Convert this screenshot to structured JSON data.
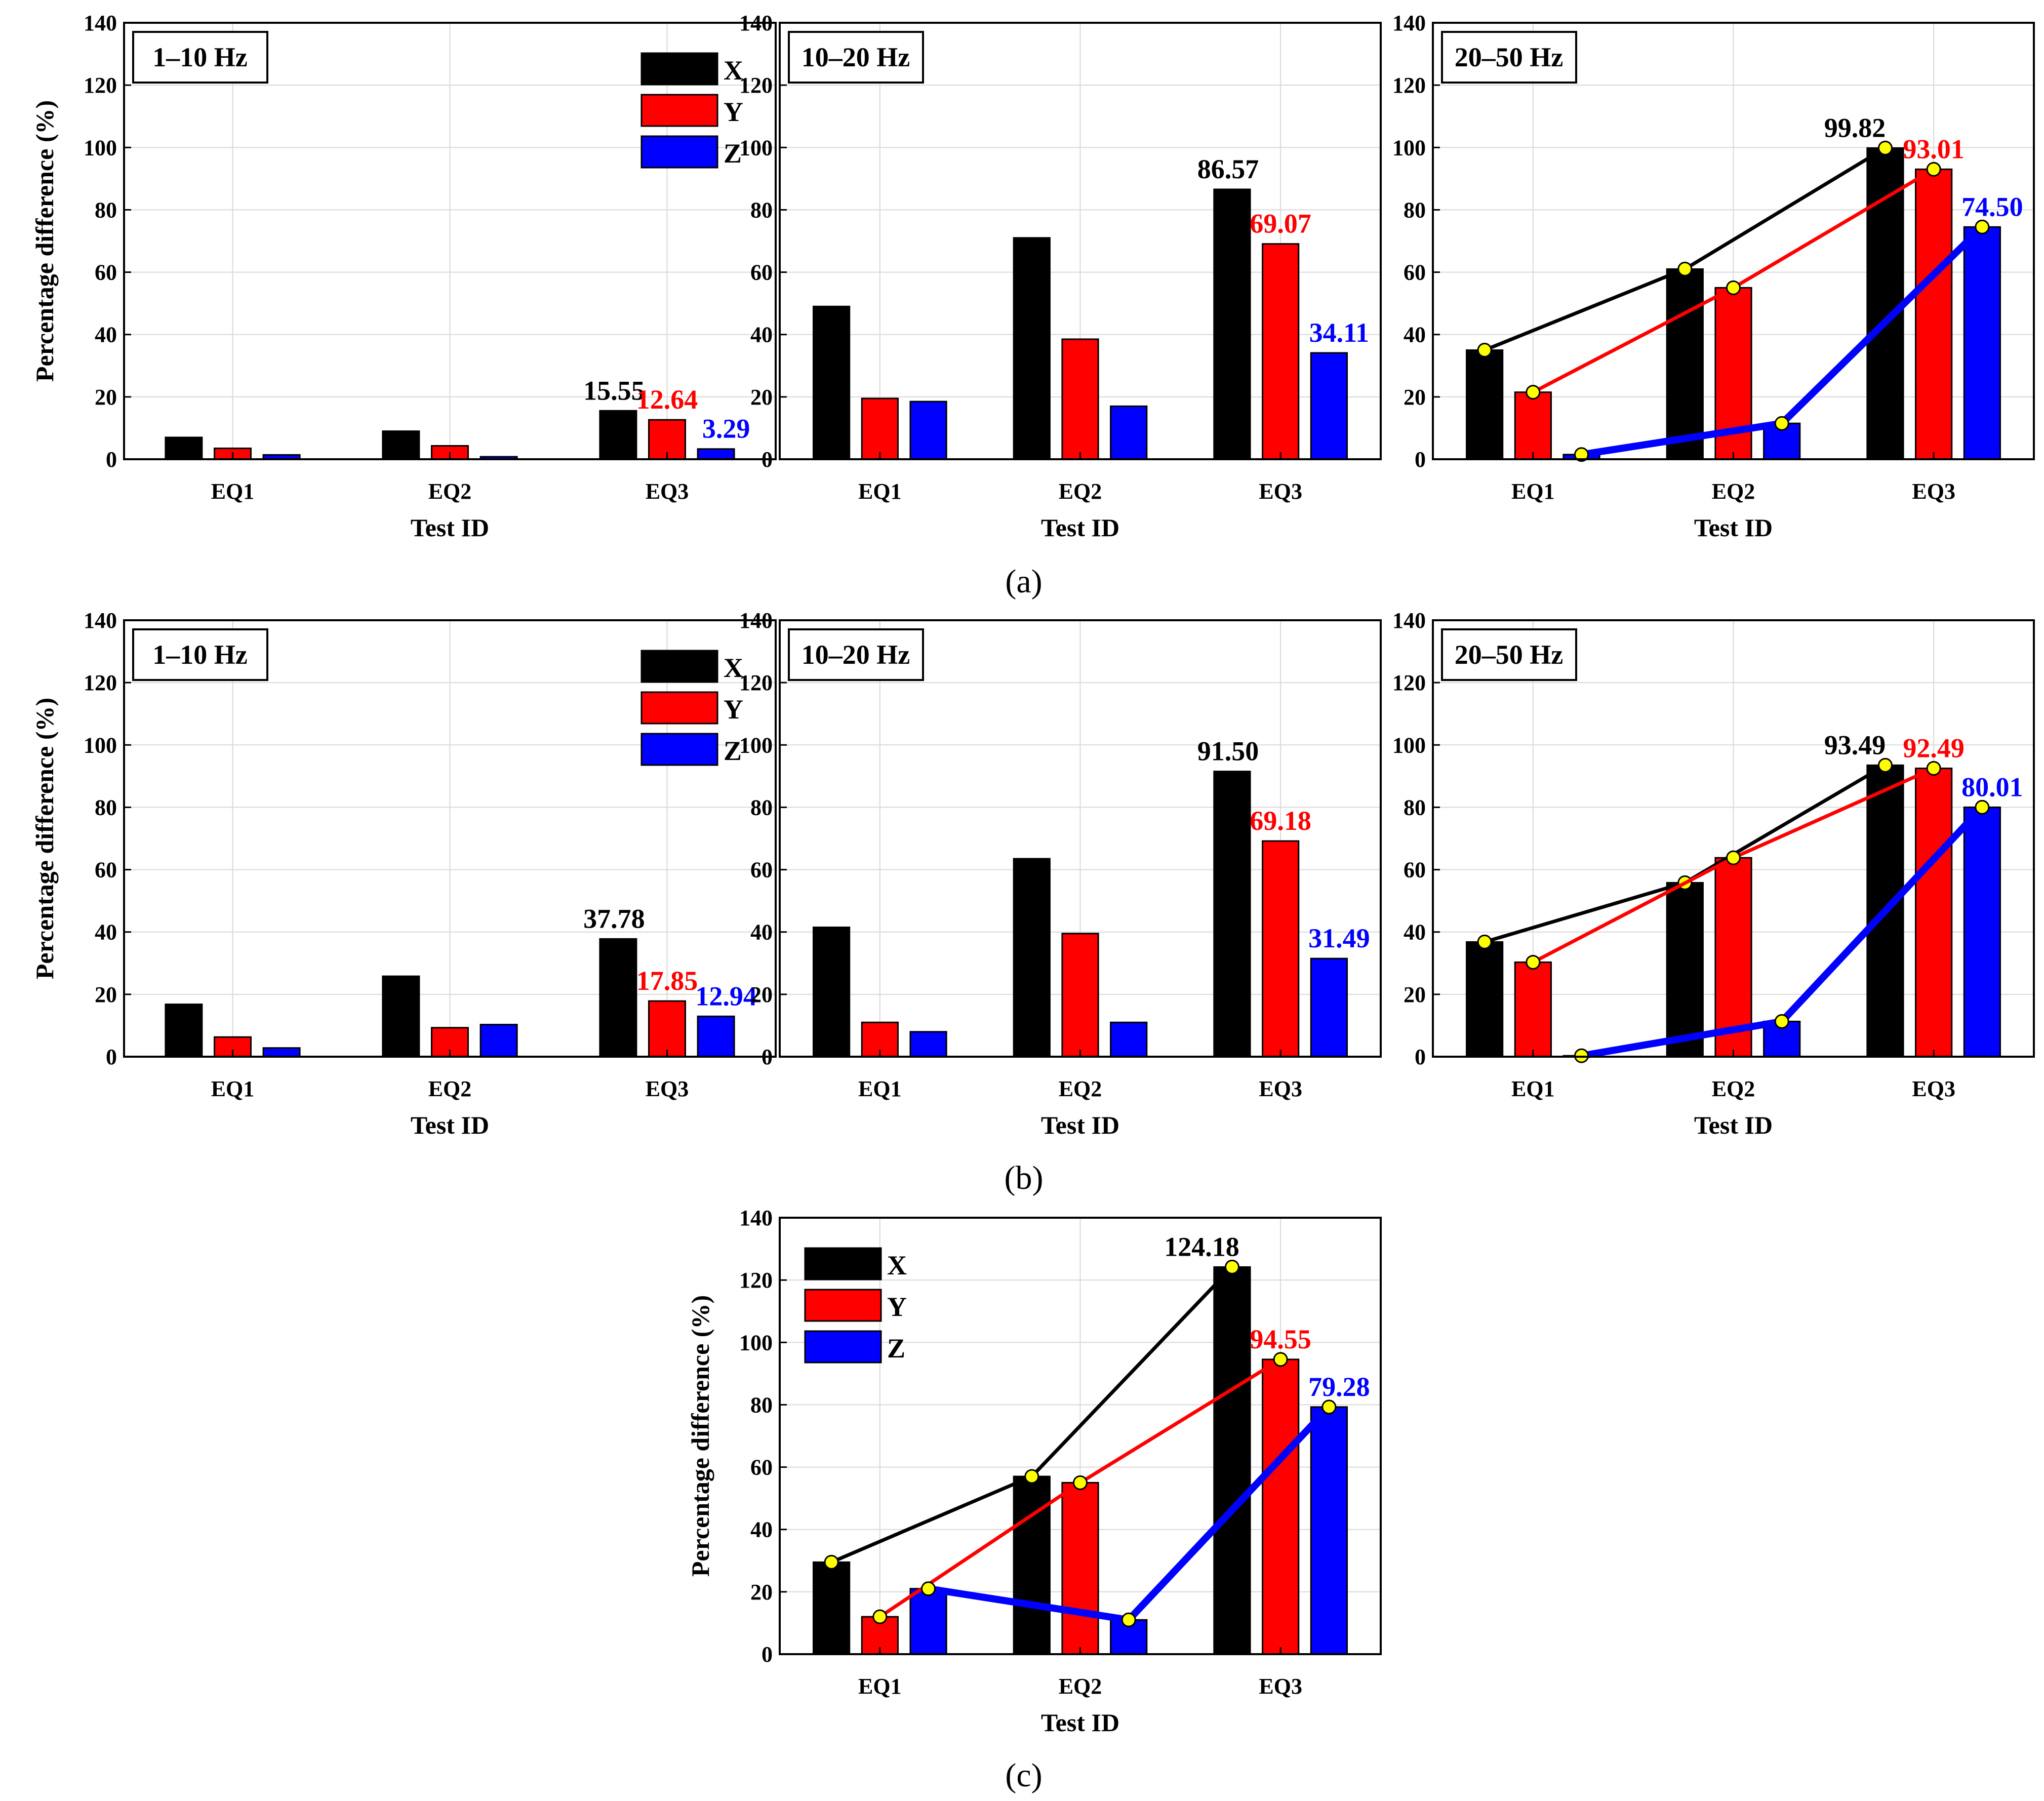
{
  "captions": [
    "(a)",
    "(b)",
    "(c)"
  ],
  "series_names": [
    "X",
    "Y",
    "Z"
  ],
  "colors": {
    "X": "#000000",
    "Y": "#ff0000",
    "Z": "#0000ff",
    "marker": "#ffff00"
  },
  "chart_data": [
    {
      "type": "bar",
      "group": "a",
      "range_label": "1–10 Hz",
      "xlabel": "Test ID",
      "ylabel": "Percentage difference (%)",
      "categories": [
        "EQ1",
        "EQ2",
        "EQ3"
      ],
      "ylim": [
        0,
        140
      ],
      "yticks": [
        "0",
        "20",
        "40",
        "60",
        "80",
        "100",
        "120",
        "140"
      ],
      "series": [
        {
          "name": "X",
          "values": [
            7,
            9,
            15.55
          ]
        },
        {
          "name": "Y",
          "values": [
            3.5,
            4.3,
            12.64
          ]
        },
        {
          "name": "Z",
          "values": [
            1.4,
            0.8,
            3.29
          ]
        }
      ],
      "annotations": [
        "15.55",
        "12.64",
        "3.29"
      ],
      "legend": "top-right",
      "trend_lines": false
    },
    {
      "type": "bar",
      "group": "a",
      "range_label": "10–20 Hz",
      "xlabel": "Test ID",
      "ylabel": "",
      "categories": [
        "EQ1",
        "EQ2",
        "EQ3"
      ],
      "ylim": [
        0,
        140
      ],
      "yticks": [
        "0",
        "20",
        "40",
        "60",
        "80",
        "100",
        "120",
        "140"
      ],
      "series": [
        {
          "name": "X",
          "values": [
            49,
            71,
            86.57
          ]
        },
        {
          "name": "Y",
          "values": [
            19.5,
            38.5,
            69.07
          ]
        },
        {
          "name": "Z",
          "values": [
            18.5,
            17,
            34.11
          ]
        }
      ],
      "annotations": [
        "86.57",
        "69.07",
        "34.11"
      ],
      "legend": "none",
      "trend_lines": false
    },
    {
      "type": "bar",
      "group": "a",
      "range_label": "20–50 Hz",
      "xlabel": "Test ID",
      "ylabel": "",
      "categories": [
        "EQ1",
        "EQ2",
        "EQ3"
      ],
      "ylim": [
        0,
        140
      ],
      "yticks": [
        "0",
        "20",
        "40",
        "60",
        "80",
        "100",
        "120",
        "140"
      ],
      "series": [
        {
          "name": "X",
          "values": [
            35,
            61,
            99.82
          ]
        },
        {
          "name": "Y",
          "values": [
            21.5,
            55,
            93.01
          ]
        },
        {
          "name": "Z",
          "values": [
            1.5,
            11.5,
            74.5
          ]
        }
      ],
      "annotations": [
        "99.82",
        "93.01",
        "74.50"
      ],
      "legend": "none",
      "trend_lines": true
    },
    {
      "type": "bar",
      "group": "b",
      "range_label": "1–10 Hz",
      "xlabel": "Test ID",
      "ylabel": "Percentage difference (%)",
      "categories": [
        "EQ1",
        "EQ2",
        "EQ3"
      ],
      "ylim": [
        0,
        140
      ],
      "yticks": [
        "0",
        "20",
        "40",
        "60",
        "80",
        "100",
        "120",
        "140"
      ],
      "series": [
        {
          "name": "X",
          "values": [
            16.8,
            25.8,
            37.78
          ]
        },
        {
          "name": "Y",
          "values": [
            6.3,
            9.3,
            17.85
          ]
        },
        {
          "name": "Z",
          "values": [
            2.8,
            10.3,
            12.94
          ]
        }
      ],
      "annotations": [
        "37.78",
        "17.85",
        "12.94"
      ],
      "legend": "top-right",
      "trend_lines": false
    },
    {
      "type": "bar",
      "group": "b",
      "range_label": "10–20 Hz",
      "xlabel": "Test ID",
      "ylabel": "",
      "categories": [
        "EQ1",
        "EQ2",
        "EQ3"
      ],
      "ylim": [
        0,
        140
      ],
      "yticks": [
        "0",
        "20",
        "40",
        "60",
        "80",
        "100",
        "120",
        "140"
      ],
      "series": [
        {
          "name": "X",
          "values": [
            41.5,
            63.5,
            91.5
          ]
        },
        {
          "name": "Y",
          "values": [
            11,
            39.5,
            69.18
          ]
        },
        {
          "name": "Z",
          "values": [
            8,
            11,
            31.49
          ]
        }
      ],
      "annotations": [
        "91.50",
        "69.18",
        "31.49"
      ],
      "legend": "none",
      "trend_lines": false
    },
    {
      "type": "bar",
      "group": "b",
      "range_label": "20–50 Hz",
      "xlabel": "Test ID",
      "ylabel": "",
      "categories": [
        "EQ1",
        "EQ2",
        "EQ3"
      ],
      "ylim": [
        0,
        140
      ],
      "yticks": [
        "0",
        "20",
        "40",
        "60",
        "80",
        "100",
        "120",
        "140"
      ],
      "series": [
        {
          "name": "X",
          "values": [
            36.8,
            55.8,
            93.49
          ]
        },
        {
          "name": "Y",
          "values": [
            30.3,
            63.8,
            92.49
          ]
        },
        {
          "name": "Z",
          "values": [
            0.3,
            11.3,
            80.01
          ]
        }
      ],
      "annotations": [
        "93.49",
        "92.49",
        "80.01"
      ],
      "legend": "none",
      "trend_lines": true
    },
    {
      "type": "bar",
      "group": "c",
      "range_label": "",
      "xlabel": "Test ID",
      "ylabel": "Percentage difference (%)",
      "categories": [
        "EQ1",
        "EQ2",
        "EQ3"
      ],
      "ylim": [
        0,
        140
      ],
      "yticks": [
        "0",
        "20",
        "40",
        "60",
        "80",
        "100",
        "120",
        "140"
      ],
      "series": [
        {
          "name": "X",
          "values": [
            29.5,
            57,
            124.18
          ]
        },
        {
          "name": "Y",
          "values": [
            12,
            55,
            94.55
          ]
        },
        {
          "name": "Z",
          "values": [
            21,
            11,
            79.28
          ]
        }
      ],
      "annotations": [
        "124.18",
        "94.55",
        "79.28"
      ],
      "legend": "top-left",
      "trend_lines": true
    }
  ]
}
